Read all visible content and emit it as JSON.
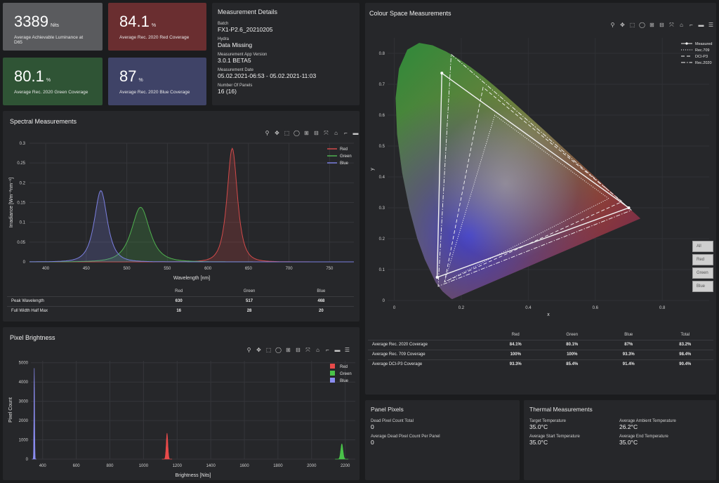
{
  "kpis": [
    {
      "value": "3389",
      "unit": "Nits",
      "label": "Average Achievable Luminance at D65",
      "color": "#5a5b5e"
    },
    {
      "value": "84.1",
      "unit": "%",
      "label": "Average Rec. 2020 Red Coverage",
      "color": "#6a2e30"
    },
    {
      "value": "80.1",
      "unit": "%",
      "label": "Average Rec. 2020 Green Coverage",
      "color": "#2f5435"
    },
    {
      "value": "87",
      "unit": "%",
      "label": "Average Rec. 2020 Blue Coverage",
      "color": "#3f4367"
    }
  ],
  "measurement_details": {
    "title": "Measurement Details",
    "fields": [
      {
        "label": "Batch",
        "value": "FX1-P2.6_20210205"
      },
      {
        "label": "Hydra",
        "value": "Data Missing"
      },
      {
        "label": "Measurement App Version",
        "value": "3.0.1 BETA5"
      },
      {
        "label": "Measurement Date",
        "value": "05.02.2021-06:53 - 05.02.2021-11:03"
      },
      {
        "label": "Number Of Panels",
        "value": "16 (16)"
      }
    ]
  },
  "toolbar_icons": [
    "zoom-icon",
    "pan-icon",
    "box-select-icon",
    "lasso-icon",
    "zoom-in-icon",
    "zoom-out-icon",
    "autoscale-icon",
    "home-icon",
    "spike-lines-icon",
    "hover-closest-icon",
    "hover-compare-icon"
  ],
  "toolbar_glyphs": [
    "⚲",
    "✥",
    "⬚",
    "◯",
    "⊞",
    "⊟",
    "⤧",
    "⌂",
    "⌐",
    "▬",
    "☰"
  ],
  "spectral": {
    "title": "Spectral Measurements",
    "table": {
      "headers": [
        "",
        "Red",
        "Green",
        "Blue"
      ],
      "rows": [
        {
          "label": "Peak Wavelength",
          "values": [
            "630",
            "517",
            "468"
          ]
        },
        {
          "label": "Full Width Half Max",
          "values": [
            "16",
            "28",
            "20"
          ]
        }
      ]
    }
  },
  "pixel": {
    "title": "Pixel Brightness"
  },
  "colour_space": {
    "title": "Colour Space Measurements",
    "buttons": [
      "All",
      "Red",
      "Green",
      "Blue"
    ],
    "table": {
      "headers": [
        "",
        "Red",
        "Green",
        "Blue",
        "Total"
      ],
      "rows": [
        {
          "label": "Average Rec. 2020 Coverage",
          "values": [
            "84.1%",
            "80.1%",
            "87%",
            "83.2%"
          ]
        },
        {
          "label": "Average Rec. 709 Coverage",
          "values": [
            "100%",
            "100%",
            "93.3%",
            "98.4%"
          ]
        },
        {
          "label": "Average DCI-P3 Coverage",
          "values": [
            "93.3%",
            "85.4%",
            "91.4%",
            "90.4%"
          ]
        }
      ]
    }
  },
  "panel_pixels": {
    "title": "Panel Pixels",
    "fields": [
      {
        "label": "Dead Pixel Count Total",
        "value": "0"
      },
      {
        "label": "Average Dead Pixel Count Per Panel",
        "value": "0"
      }
    ]
  },
  "thermal": {
    "title": "Thermal Measurements",
    "fields": [
      {
        "label": "Target Temperature",
        "value": "35.0°C"
      },
      {
        "label": "Average Ambient Temperature",
        "value": "26.2°C"
      },
      {
        "label": "Average Start Temperature",
        "value": "35.0°C"
      },
      {
        "label": "Average End Temperature",
        "value": "35.0°C"
      }
    ]
  },
  "chart_data": [
    {
      "type": "line",
      "name_ref": "spectral",
      "xlabel": "Wavelength [nm]",
      "ylabel": "Irradiance [Wm⁻²nm⁻¹]",
      "xlim": [
        380,
        780
      ],
      "ylim": [
        0,
        0.3
      ],
      "xticks": [
        400,
        450,
        500,
        550,
        600,
        650,
        700,
        750
      ],
      "yticks": [
        0,
        0.05,
        0.1,
        0.15,
        0.2,
        0.25,
        0.3
      ],
      "ytick_labels": [
        "0",
        "0.05",
        "0.1",
        "0.15",
        "0.2",
        "0.25",
        "0.3"
      ],
      "legend": "top-right",
      "series": [
        {
          "name": "Red",
          "color": "#d24a4a",
          "peak": 630,
          "fwhm": 16,
          "height": 0.287
        },
        {
          "name": "Green",
          "color": "#4fb04f",
          "peak": 517,
          "fwhm": 28,
          "height": 0.138
        },
        {
          "name": "Blue",
          "color": "#7b7fe0",
          "peak": 468,
          "fwhm": 20,
          "height": 0.18
        }
      ]
    },
    {
      "type": "bar",
      "name_ref": "pixel",
      "xlabel": "Brightness [Nits]",
      "ylabel": "Pixel Count",
      "xlim": [
        330,
        2260
      ],
      "ylim": [
        0,
        5100
      ],
      "xticks": [
        400,
        600,
        800,
        1000,
        1200,
        1400,
        1600,
        1800,
        2000,
        2200
      ],
      "yticks": [
        0,
        1000,
        2000,
        3000,
        4000,
        5000
      ],
      "legend": "top-right",
      "series": [
        {
          "name": "Red",
          "color": "#e84a4a",
          "center": 1140,
          "width": 12,
          "height": 1350
        },
        {
          "name": "Green",
          "color": "#49c249",
          "center": 2180,
          "width": 16,
          "height": 800
        },
        {
          "name": "Blue",
          "color": "#8a8cf0",
          "center": 350,
          "width": 5,
          "height": 4850
        }
      ]
    },
    {
      "type": "scatter",
      "name_ref": "colour_space",
      "xlabel": "x",
      "ylabel": "y",
      "xlim": [
        -0.02,
        0.94
      ],
      "ylim": [
        0,
        0.85
      ],
      "xticks": [
        0,
        0.2,
        0.4,
        0.6,
        0.8
      ],
      "yticks": [
        0,
        0.1,
        0.2,
        0.3,
        0.4,
        0.5,
        0.6,
        0.7,
        0.8
      ],
      "legend": "top-right",
      "series": [
        {
          "name": "Measured",
          "style": "solid-markers",
          "points": [
            [
              0.7,
              0.3
            ],
            [
              0.142,
              0.736
            ],
            [
              0.128,
              0.075
            ]
          ]
        },
        {
          "name": "Rec.709",
          "style": "dotted",
          "points": [
            [
              0.64,
              0.33
            ],
            [
              0.3,
              0.6
            ],
            [
              0.15,
              0.06
            ]
          ]
        },
        {
          "name": "DCI-P3",
          "style": "dashed",
          "points": [
            [
              0.68,
              0.32
            ],
            [
              0.265,
              0.69
            ],
            [
              0.15,
              0.06
            ]
          ]
        },
        {
          "name": "Rec.2020",
          "style": "dashdot",
          "points": [
            [
              0.708,
              0.292
            ],
            [
              0.17,
              0.797
            ],
            [
              0.131,
              0.046
            ]
          ]
        }
      ]
    }
  ]
}
